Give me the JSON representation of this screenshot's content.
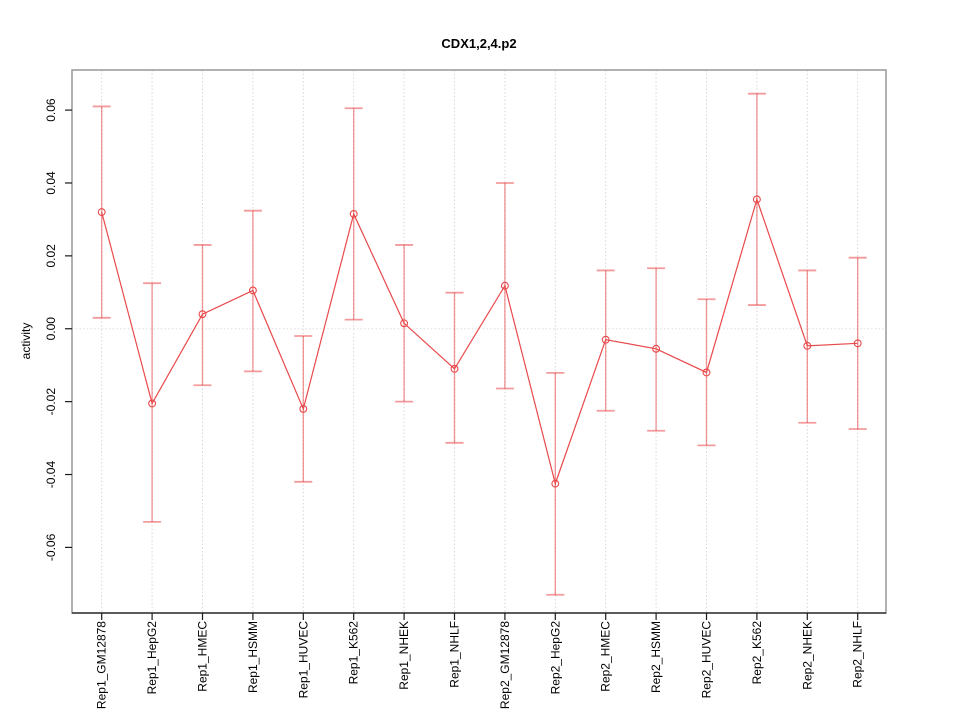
{
  "chart_data": {
    "type": "line",
    "title": "CDX1,2,4.p2",
    "xlabel": "",
    "ylabel": "activity",
    "ylim": [
      -0.078,
      0.071
    ],
    "ytick_values": [
      -0.06,
      -0.04,
      -0.02,
      0,
      0.02,
      0.04,
      0.06
    ],
    "ytick_labels": [
      "-0.06",
      "-0.04",
      "-0.02",
      "0.00",
      "0.02",
      "0.04",
      "0.06"
    ],
    "grid": "dotted vertical line at each category plus dotted horizontal line at zero",
    "legend": "none",
    "categories": [
      "Rep1_GM12878",
      "Rep1_HepG2",
      "Rep1_HMEC",
      "Rep1_HSMM",
      "Rep1_HUVEC",
      "Rep1_K562",
      "Rep1_NHEK",
      "Rep1_NHLF",
      "Rep2_GM12878",
      "Rep2_HepG2",
      "Rep2_HMEC",
      "Rep2_HSMM",
      "Rep2_HUVEC",
      "Rep2_K562",
      "Rep2_NHEK",
      "Rep2_NHLF"
    ],
    "series": [
      {
        "name": "activity",
        "values": [
          0.032,
          -0.0205,
          0.004,
          0.0105,
          -0.022,
          0.0315,
          0.0015,
          -0.011,
          0.0118,
          -0.0425,
          -0.003,
          -0.0055,
          -0.012,
          0.0355,
          -0.0047,
          -0.004
        ],
        "ci_low": [
          0.003,
          -0.053,
          -0.0155,
          -0.0117,
          -0.042,
          0.0025,
          -0.02,
          -0.0313,
          -0.0164,
          -0.073,
          -0.0225,
          -0.028,
          -0.032,
          0.0065,
          -0.0258,
          -0.0275
        ],
        "ci_high": [
          0.061,
          0.0125,
          0.023,
          0.0324,
          -0.002,
          0.0605,
          0.023,
          0.0099,
          0.04,
          -0.0121,
          0.016,
          0.0166,
          0.0081,
          0.0645,
          0.016,
          0.0195
        ]
      }
    ],
    "colors": {
      "series": "#e9494b",
      "error_bar": "#e9494b",
      "error_bar_opacity": 0.55,
      "grid": "#d6d6d6",
      "zero_line": "#dedede",
      "box": "#979797",
      "axis": "#1a1a1a"
    }
  }
}
